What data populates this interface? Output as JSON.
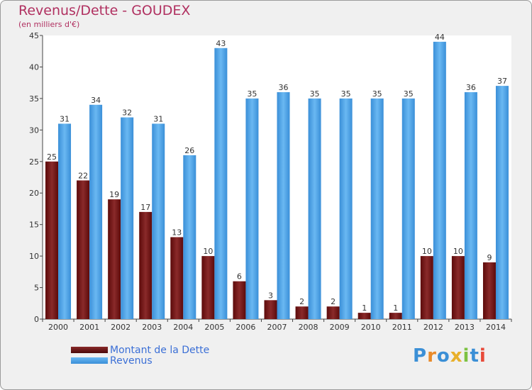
{
  "chart_data": {
    "type": "bar",
    "title": "Revenus/Dette - GOUDEX",
    "subtitle": "(en milliers d'€)",
    "categories": [
      "2000",
      "2001",
      "2002",
      "2003",
      "2004",
      "2005",
      "2006",
      "2007",
      "2008",
      "2009",
      "2010",
      "2011",
      "2012",
      "2013",
      "2014"
    ],
    "series": [
      {
        "name": "Montant de la Dette",
        "color": "#7b1a1a",
        "values": [
          25,
          22,
          19,
          17,
          13,
          10,
          6,
          3,
          2,
          2,
          1,
          1,
          10,
          10,
          9
        ]
      },
      {
        "name": "Revenus",
        "color": "#4ea6e8",
        "values": [
          31,
          34,
          32,
          31,
          26,
          43,
          35,
          36,
          35,
          35,
          35,
          35,
          44,
          36,
          37
        ]
      }
    ],
    "ylim": [
      0,
      45
    ],
    "yticks": [
      0,
      5,
      10,
      15,
      20,
      25,
      30,
      35,
      40,
      45
    ],
    "xlabel": "",
    "ylabel": "",
    "grid": false,
    "legend": "bottom-left"
  },
  "logo": {
    "letters": [
      "P",
      "r",
      "o",
      "x",
      "i",
      "t",
      "i"
    ],
    "colors": [
      "#3b8fd6",
      "#e88a2a",
      "#3b8fd6",
      "#e8b02a",
      "#7cc242",
      "#3b8fd6",
      "#e84a3a"
    ]
  }
}
